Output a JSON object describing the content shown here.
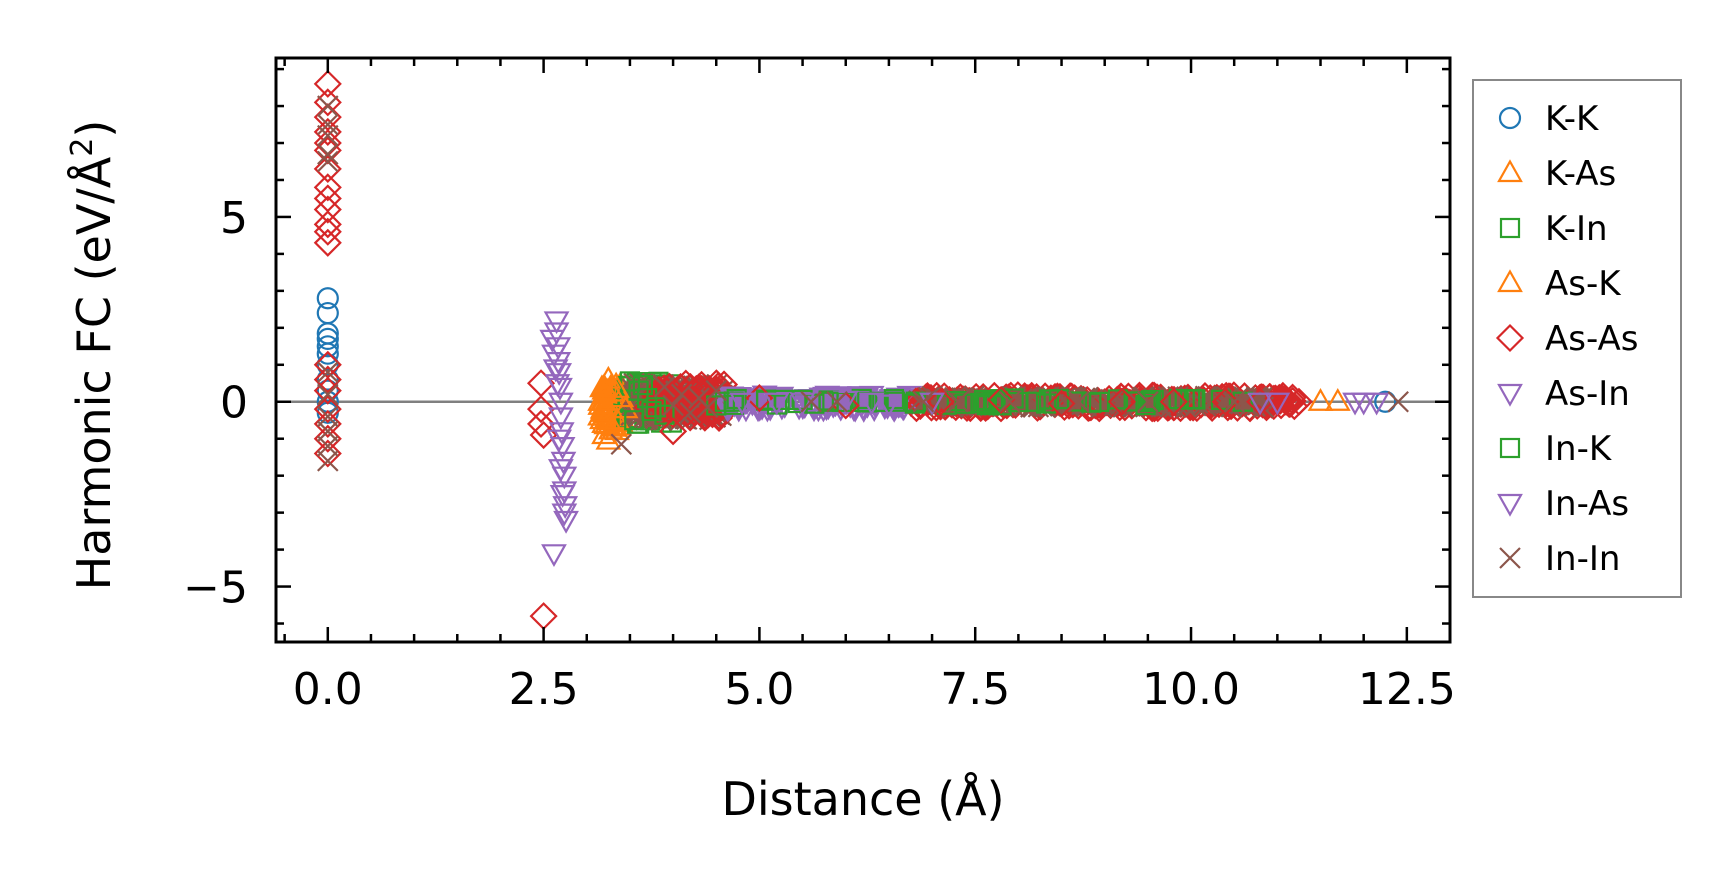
{
  "chart_data": {
    "type": "scatter",
    "xlabel": "Distance (Å)",
    "ylabel_main": "Harmonic FC (eV/Å",
    "ylabel_sup": "2",
    "ylabel_close": ")",
    "xlim": [
      -0.6,
      13.0
    ],
    "ylim": [
      -6.5,
      9.3
    ],
    "x_ticks": [
      0.0,
      2.5,
      5.0,
      7.5,
      10.0,
      12.5
    ],
    "x_tick_labels": [
      "0.0",
      "2.5",
      "5.0",
      "7.5",
      "10.0",
      "12.5"
    ],
    "y_ticks": [
      -5,
      0,
      5
    ],
    "y_tick_labels": [
      "−5",
      "0",
      "5"
    ],
    "zero_line": 0,
    "legend_position": "outside-right",
    "series": [
      {
        "name": "K-K",
        "marker": "circle",
        "color": "#1f77b4",
        "points": [
          [
            0.0,
            2.8
          ],
          [
            0.0,
            2.4
          ],
          [
            0.0,
            1.85
          ],
          [
            0.0,
            1.7
          ],
          [
            0.0,
            1.5
          ],
          [
            0.0,
            1.3
          ],
          [
            0.0,
            1.0
          ],
          [
            0.0,
            0.6
          ],
          [
            0.0,
            0.3
          ],
          [
            0.0,
            0.0
          ],
          [
            0.0,
            -0.3
          ],
          [
            12.25,
            0.0
          ]
        ]
      },
      {
        "name": "K-As",
        "marker": "triangle-up",
        "color": "#ff7f0e",
        "points": [
          [
            3.2,
            0.4
          ],
          [
            3.2,
            0.2
          ],
          [
            3.2,
            0.0
          ],
          [
            3.2,
            -0.3
          ],
          [
            3.2,
            -0.6
          ],
          [
            3.2,
            -0.9
          ],
          [
            3.25,
            -1.05
          ],
          [
            3.3,
            0.25
          ],
          [
            3.35,
            -0.5
          ],
          [
            3.4,
            0.1
          ],
          [
            3.45,
            -0.2
          ]
        ]
      },
      {
        "name": "K-In",
        "marker": "square",
        "color": "#2ca02c",
        "points": [
          [
            3.5,
            0.55
          ],
          [
            3.6,
            0.3
          ],
          [
            3.7,
            0.1
          ],
          [
            3.8,
            -0.15
          ],
          [
            3.9,
            -0.35
          ],
          [
            4.5,
            -0.1
          ],
          [
            5.5,
            0.05
          ],
          [
            6.8,
            -0.05
          ],
          [
            8.2,
            0.0
          ],
          [
            9.5,
            0.0
          ],
          [
            10.6,
            0.0
          ]
        ]
      },
      {
        "name": "As-K",
        "marker": "triangle-up",
        "color": "#ff7f0e",
        "points": [
          [
            3.25,
            0.6
          ],
          [
            3.3,
            -0.7
          ],
          [
            3.35,
            0.35
          ],
          [
            11.5,
            0.0
          ],
          [
            11.7,
            0.0
          ]
        ]
      },
      {
        "name": "As-As",
        "marker": "diamond",
        "color": "#d62728",
        "points": [
          [
            0.0,
            8.6
          ],
          [
            0.0,
            8.1
          ],
          [
            0.0,
            7.7
          ],
          [
            0.0,
            7.3
          ],
          [
            0.0,
            7.0
          ],
          [
            0.0,
            6.8
          ],
          [
            0.0,
            6.3
          ],
          [
            0.0,
            5.8
          ],
          [
            0.0,
            5.5
          ],
          [
            0.0,
            5.2
          ],
          [
            0.0,
            4.8
          ],
          [
            0.0,
            4.6
          ],
          [
            0.0,
            4.3
          ],
          [
            0.0,
            1.0
          ],
          [
            0.0,
            0.6
          ],
          [
            0.0,
            0.3
          ],
          [
            0.0,
            -0.2
          ],
          [
            0.0,
            -0.6
          ],
          [
            0.0,
            -1.0
          ],
          [
            0.0,
            -1.4
          ],
          [
            2.47,
            0.5
          ],
          [
            2.47,
            -0.2
          ],
          [
            2.47,
            -0.6
          ],
          [
            2.5,
            -0.9
          ],
          [
            2.5,
            -5.8
          ],
          [
            4.0,
            -0.8
          ],
          [
            4.2,
            0.4
          ],
          [
            5.0,
            0.1
          ],
          [
            6.0,
            -0.1
          ],
          [
            7.1,
            0.0
          ],
          [
            7.8,
            0.05
          ],
          [
            8.5,
            -0.05
          ],
          [
            9.2,
            0.0
          ],
          [
            9.8,
            0.0
          ],
          [
            10.4,
            0.0
          ],
          [
            10.8,
            0.0
          ],
          [
            11.1,
            0.0
          ],
          [
            11.25,
            0.0
          ]
        ]
      },
      {
        "name": "As-In",
        "marker": "triangle-down",
        "color": "#9467bd",
        "points": [
          [
            2.65,
            2.2
          ],
          [
            2.65,
            1.9
          ],
          [
            2.67,
            1.5
          ],
          [
            2.67,
            1.1
          ],
          [
            2.68,
            0.8
          ],
          [
            2.69,
            0.4
          ],
          [
            2.7,
            0.0
          ],
          [
            2.7,
            -0.4
          ],
          [
            2.71,
            -0.8
          ],
          [
            2.72,
            -1.2
          ],
          [
            2.73,
            -1.6
          ],
          [
            2.74,
            -2.0
          ],
          [
            2.74,
            -2.4
          ],
          [
            2.75,
            -2.8
          ],
          [
            2.76,
            -3.2
          ],
          [
            2.62,
            -4.1
          ],
          [
            5.5,
            0.0
          ],
          [
            6.0,
            0.05
          ],
          [
            6.5,
            -0.05
          ],
          [
            10.8,
            0.0
          ],
          [
            11.0,
            0.0
          ],
          [
            12.0,
            0.0
          ],
          [
            12.15,
            0.0
          ]
        ]
      },
      {
        "name": "In-K",
        "marker": "square",
        "color": "#2ca02c",
        "points": [
          [
            3.55,
            -0.5
          ],
          [
            3.65,
            0.45
          ],
          [
            3.75,
            -0.25
          ],
          [
            4.6,
            0.0
          ],
          [
            5.8,
            0.0
          ]
        ]
      },
      {
        "name": "In-As",
        "marker": "triangle-down",
        "color": "#9467bd",
        "points": [
          [
            2.6,
            1.7
          ],
          [
            2.62,
            1.3
          ],
          [
            2.64,
            0.9
          ],
          [
            2.66,
            0.5
          ],
          [
            2.68,
            -1.0
          ],
          [
            2.7,
            -1.8
          ],
          [
            2.72,
            -2.5
          ],
          [
            2.74,
            -3.0
          ],
          [
            4.8,
            0.0
          ],
          [
            5.2,
            0.0
          ],
          [
            6.3,
            0.0
          ],
          [
            7.0,
            0.0
          ],
          [
            11.9,
            0.0
          ]
        ]
      },
      {
        "name": "In-In",
        "marker": "x",
        "color": "#8c564b",
        "points": [
          [
            0.0,
            8.0
          ],
          [
            0.0,
            7.5
          ],
          [
            0.0,
            7.2
          ],
          [
            0.0,
            6.7
          ],
          [
            0.0,
            6.5
          ],
          [
            0.0,
            0.8
          ],
          [
            0.0,
            0.2
          ],
          [
            0.0,
            -0.4
          ],
          [
            0.0,
            -0.8
          ],
          [
            0.0,
            -1.2
          ],
          [
            0.0,
            -1.6
          ],
          [
            3.4,
            -1.15
          ],
          [
            3.9,
            0.4
          ],
          [
            4.0,
            -0.1
          ],
          [
            4.1,
            0.2
          ],
          [
            4.2,
            -0.3
          ],
          [
            4.3,
            0.1
          ],
          [
            4.4,
            -0.15
          ],
          [
            4.5,
            0.3
          ],
          [
            5.6,
            0.0
          ],
          [
            5.9,
            0.0
          ],
          [
            6.9,
            0.0
          ],
          [
            7.3,
            0.0
          ],
          [
            7.9,
            0.0
          ],
          [
            8.7,
            0.0
          ],
          [
            9.5,
            0.0
          ],
          [
            10.5,
            0.0
          ],
          [
            12.4,
            0.0
          ]
        ]
      }
    ],
    "dense_bands": [
      {
        "series": "K-As",
        "x0": 3.15,
        "x1": 3.45,
        "y_lo": -0.8,
        "y_hi": 0.45,
        "count": 60
      },
      {
        "series": "K-In",
        "x0": 3.4,
        "x1": 4.0,
        "y_lo": -0.6,
        "y_hi": 0.55,
        "count": 60
      },
      {
        "series": "In-In",
        "x0": 3.5,
        "x1": 4.6,
        "y_lo": -0.5,
        "y_hi": 0.5,
        "count": 140
      },
      {
        "series": "As-As",
        "x0": 3.7,
        "x1": 4.6,
        "y_lo": -0.45,
        "y_hi": 0.5,
        "count": 70
      },
      {
        "series": "As-In",
        "x0": 4.6,
        "x1": 6.8,
        "y_lo": -0.2,
        "y_hi": 0.2,
        "count": 150
      },
      {
        "series": "As-As",
        "x0": 6.8,
        "x1": 11.2,
        "y_lo": -0.18,
        "y_hi": 0.18,
        "count": 260
      },
      {
        "series": "In-In",
        "x0": 6.8,
        "x1": 10.9,
        "y_lo": -0.15,
        "y_hi": 0.15,
        "count": 160
      },
      {
        "series": "K-In",
        "x0": 4.6,
        "x1": 10.5,
        "y_lo": -0.1,
        "y_hi": 0.1,
        "count": 50
      }
    ]
  }
}
